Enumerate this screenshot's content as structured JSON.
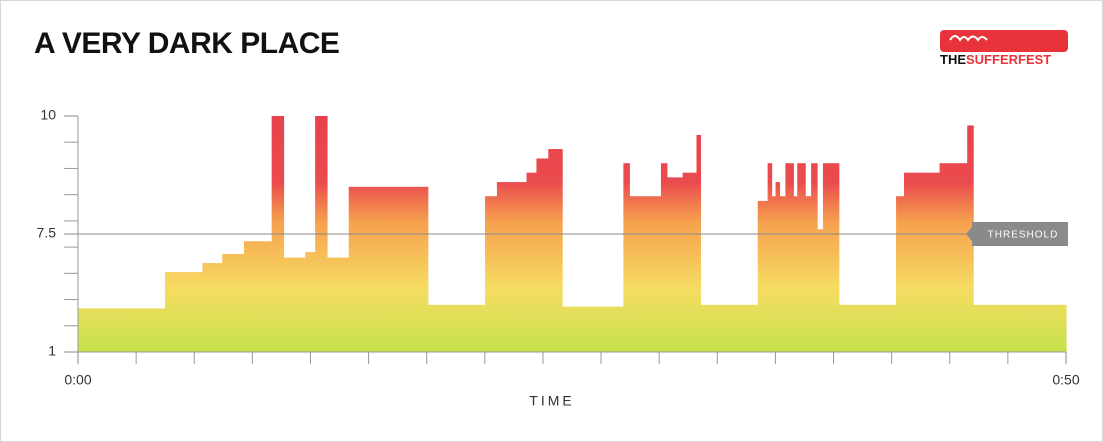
{
  "chart_data": {
    "type": "step-area",
    "title": "A VERY DARK PLACE",
    "logo_text": [
      "THE",
      "SUFFERFEST"
    ],
    "xlabel": "TIME",
    "x": [
      0,
      4.4,
      6.3,
      7.3,
      8.4,
      9.8,
      10.4,
      11.5,
      12.0,
      12.6,
      13.7,
      17.7,
      20.6,
      21.2,
      22.7,
      23.2,
      23.8,
      24.5,
      27.6,
      27.9,
      29.5,
      29.8,
      30.6,
      31.3,
      31.5,
      34.4,
      34.9,
      35.1,
      35.3,
      35.5,
      35.8,
      36.2,
      36.4,
      36.8,
      37.1,
      37.4,
      37.7,
      38.5,
      41.4,
      41.8,
      43.6,
      45.0,
      45.3
    ],
    "values": [
      3.4,
      5.4,
      5.9,
      6.4,
      7.1,
      10,
      6.2,
      6.5,
      10,
      6.2,
      8.5,
      3.6,
      8.3,
      8.6,
      8.8,
      9.1,
      9.3,
      3.5,
      9.0,
      8.3,
      9.0,
      8.7,
      8.8,
      9.6,
      3.6,
      8.2,
      9.0,
      8.3,
      8.6,
      8.3,
      9.0,
      8.3,
      9.0,
      8.3,
      9.0,
      7.6,
      9.0,
      3.6,
      8.3,
      8.8,
      9.0,
      9.8,
      3.6
    ],
    "xlim": [
      0,
      50
    ],
    "xticks": [
      {
        "value": 0,
        "label": "0:00"
      },
      {
        "value": 50,
        "label": "0:50"
      }
    ],
    "ylim": [
      1,
      10
    ],
    "yticks": [
      1,
      7.5,
      10
    ],
    "threshold": {
      "value": 7.5,
      "label": "THRESHOLD"
    }
  }
}
